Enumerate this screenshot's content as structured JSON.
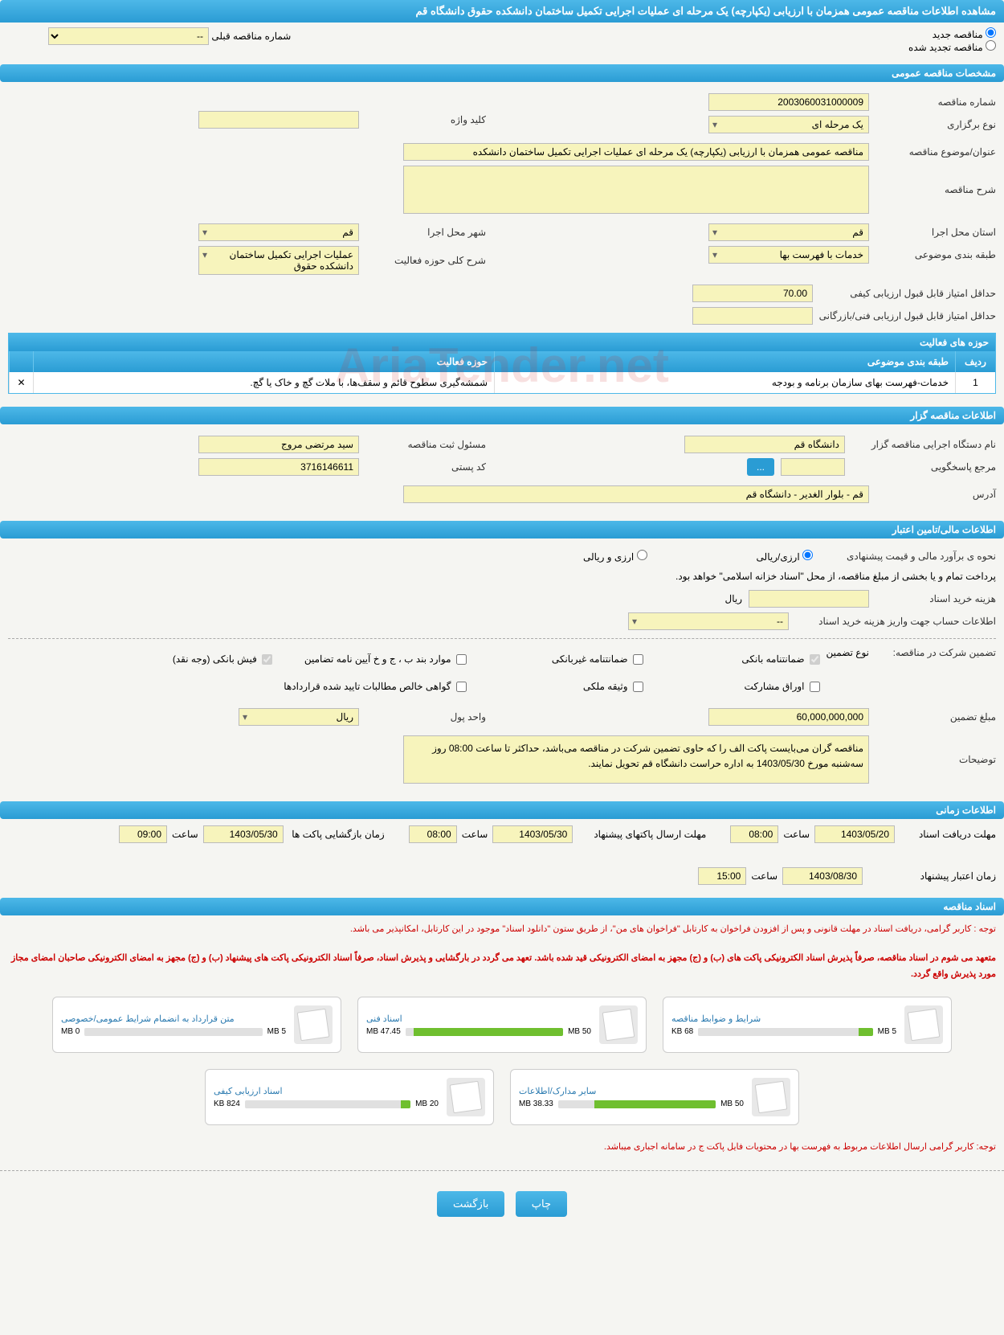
{
  "page_title": "مشاهده اطلاعات مناقصه عمومی همزمان با ارزیابی (یکپارچه) یک مرحله ای عملیات اجرایی تکمیل ساختمان دانشکده حقوق دانشگاه قم",
  "radio": {
    "new": "مناقصه جدید",
    "renewed": "مناقصه تجدید شده",
    "prev_label": "شماره مناقصه قبلی",
    "prev_value": "--"
  },
  "sections": {
    "general": "مشخصات مناقصه عمومی",
    "tenderer": "اطلاعات مناقصه گزار",
    "financial": "اطلاعات مالی/تامین اعتبار",
    "timing": "اطلاعات زمانی",
    "docs": "اسناد مناقصه"
  },
  "general": {
    "tender_number_label": "شماره مناقصه",
    "tender_number": "2003060031000009",
    "type_label": "نوع برگزاری",
    "type": "یک مرحله ای",
    "keyword_label": "کلید واژه",
    "keyword": "",
    "subject_label": "عنوان/موضوع مناقصه",
    "subject": "مناقصه عمومی همزمان با ارزیابی (یکپارچه) یک مرحله ای عملیات اجرایی تکمیل ساختمان دانشکده",
    "desc_label": "شرح مناقصه",
    "desc": "",
    "province_label": "استان محل اجرا",
    "province": "قم",
    "city_label": "شهر محل اجرا",
    "city": "قم",
    "category_label": "طبقه بندی موضوعی",
    "category": "خدمات با فهرست بها",
    "activity_desc_label": "شرح کلی حوزه فعالیت",
    "activity_desc": "عملیات اجرایی تکمیل ساختمان دانشکده حقوق",
    "min_score_quality_label": "حداقل امتیاز قابل قبول ارزیابی کیفی",
    "min_score_quality": "70.00",
    "min_score_tech_label": "حداقل امتیاز قابل قبول ارزیابی فنی/بازرگانی",
    "min_score_tech": "",
    "activities_title": "حوزه های فعالیت",
    "activities": {
      "cols": {
        "row": "ردیف",
        "cat": "طبقه بندی موضوعی",
        "act": "حوزه فعالیت"
      },
      "rows": [
        {
          "row": "1",
          "cat": "خدمات-فهرست بهای سازمان برنامه و بودجه",
          "act": "شمشه‌گیری سطوح قائم و سقف‌ها، با ملات گچ و خاک یا گچ."
        }
      ]
    }
  },
  "tenderer": {
    "org_label": "نام دستگاه اجرایی مناقصه گزار",
    "org": "دانشگاه قم",
    "responsible_label": "مسئول ثبت مناقصه",
    "responsible": "سید مرتضی مروج",
    "contact_label": "مرجع پاسخگویی",
    "contact": "",
    "postal_label": "کد پستی",
    "postal": "3716146611",
    "address_label": "آدرس",
    "address": "قم - بلوار الغدیر - دانشگاه قم"
  },
  "financial": {
    "method_label": "نحوه ی برآورد مالی و قیمت پیشنهادی",
    "method_opt1": "ارزی/ریالی",
    "method_opt2": "ارزی و ریالی",
    "payment_note": "پرداخت تمام و یا بخشی از مبلغ مناقصه، از محل \"اسناد خزانه اسلامی\" خواهد بود.",
    "doc_fee_label": "هزینه خرید اسناد",
    "doc_fee_unit": "ریال",
    "doc_fee": "",
    "account_label": "اطلاعات حساب جهت واریز هزینه خرید اسناد",
    "account": "--",
    "guarantee_label": "تضمین شرکت در مناقصه:",
    "guarantee_type_label": "نوع تضمین",
    "guarantee_opts": {
      "bank": "ضمانتنامه بانکی",
      "nonbank": "ضمانتنامه غیربانکی",
      "bond": "موارد بند ب ، ج و خ آیین نامه تضامین",
      "cash": "فیش بانکی (وجه نقد)",
      "securities": "اوراق مشارکت",
      "property": "وثیقه ملکی",
      "cert": "گواهی خالص مطالبات تایید شده قراردادها"
    },
    "amount_label": "مبلغ تضمین",
    "amount": "60,000,000,000",
    "currency_label": "واحد پول",
    "currency": "ریال",
    "notes_label": "توضیحات",
    "notes": "مناقصه گران می‌بایست پاکت الف را که حاوی تضمین شرکت در مناقصه می‌باشد، حداکثر تا ساعت 08:00 روز سه‌شنبه مورخ 1403/05/30 به اداره حراست دانشگاه قم تحویل نمایند."
  },
  "timing": {
    "receive_label": "مهلت دریافت اسناد",
    "receive_date": "1403/05/20",
    "receive_time_label": "ساعت",
    "receive_time": "08:00",
    "submit_label": "مهلت ارسال پاکتهای پیشنهاد",
    "submit_date": "1403/05/30",
    "submit_time": "08:00",
    "open_label": "زمان بازگشایی پاکت ها",
    "open_date": "1403/05/30",
    "open_time": "09:00",
    "validity_label": "زمان اعتبار پیشنهاد",
    "validity_date": "1403/08/30",
    "validity_time": "15:00"
  },
  "docs": {
    "notice1": "توجه : کاربر گرامی، دریافت اسناد در مهلت قانونی و پس از افزودن فراخوان به کارتابل \"فراخوان های من\"، از طریق ستون \"دانلود اسناد\" موجود در این کارتابل، امکانپذیر می باشد.",
    "notice2": "متعهد می شوم در اسناد مناقصه، صرفاً پذیرش اسناد الکترونیکی پاکت های (ب) و (ج) مجهز به امضای الکترونیکی قید شده باشد. تعهد می گردد در بارگشایی و پذیرش اسناد، صرفاً اسناد الکترونیکی پاکت های پیشنهاد (ب) و (ج) مجهز به امضای الکترونیکی صاحبان امضای مجاز مورد پذیرش واقع گردد.",
    "items": [
      {
        "title": "شرایط و ضوابط مناقصه",
        "size": "68 KB",
        "cap": "5 MB",
        "fill": 8
      },
      {
        "title": "اسناد فنی",
        "size": "47.45 MB",
        "cap": "50 MB",
        "fill": 95
      },
      {
        "title": "متن قرارداد به انضمام شرایط عمومی/خصوصی",
        "size": "0 MB",
        "cap": "5 MB",
        "fill": 0
      },
      {
        "title": "سایر مدارک/اطلاعات",
        "size": "38.33 MB",
        "cap": "50 MB",
        "fill": 77
      },
      {
        "title": "اسناد ارزیابی کیفی",
        "size": "824 KB",
        "cap": "20 MB",
        "fill": 6
      }
    ],
    "footer_notice": "توجه: کاربر گرامی ارسال اطلاعات مربوط به فهرست بها در محتویات فایل پاکت ج در سامانه اجباری میباشد."
  },
  "buttons": {
    "print": "چاپ",
    "back": "بازگشت"
  },
  "watermark": "AriaTender.net"
}
